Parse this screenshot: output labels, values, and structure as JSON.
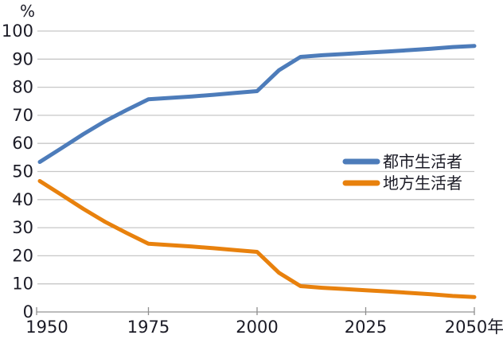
{
  "chart_data": {
    "type": "line",
    "title": "",
    "xlabel": "",
    "ylabel": "%",
    "ylim": [
      0,
      100
    ],
    "yticks": [
      0,
      10,
      20,
      30,
      40,
      50,
      60,
      70,
      80,
      90,
      100
    ],
    "x_range": [
      1950,
      2050
    ],
    "xticks": [
      {
        "year": 1950,
        "label": "1950"
      },
      {
        "year": 1975,
        "label": "1975"
      },
      {
        "year": 2000,
        "label": "2000"
      },
      {
        "year": 2025,
        "label": "2025"
      },
      {
        "year": 2050,
        "label": "2050年"
      }
    ],
    "grid": "horizontal",
    "legend_position": "middle-right",
    "x": [
      1950,
      1955,
      1960,
      1965,
      1970,
      1975,
      1980,
      1985,
      1990,
      1995,
      2000,
      2005,
      2010,
      2015,
      2020,
      2025,
      2030,
      2035,
      2040,
      2045,
      2050
    ],
    "series": [
      {
        "name": "都市生活者",
        "color": "#4d7cba",
        "values": [
          53.4,
          58.3,
          63.3,
          67.9,
          71.9,
          75.7,
          76.2,
          76.7,
          77.3,
          78.0,
          78.6,
          86.0,
          90.8,
          91.4,
          91.8,
          92.3,
          92.7,
          93.2,
          93.7,
          94.3,
          94.7
        ]
      },
      {
        "name": "地方生活者",
        "color": "#e8810d",
        "values": [
          46.6,
          41.7,
          36.7,
          32.1,
          28.1,
          24.3,
          23.8,
          23.3,
          22.7,
          22.0,
          21.4,
          14.0,
          9.2,
          8.6,
          8.2,
          7.7,
          7.3,
          6.8,
          6.3,
          5.7,
          5.3
        ]
      }
    ]
  },
  "colors": {
    "grid_line": "#c7c7c7",
    "axis_line": "#a6a6a6",
    "tick_mark": "#8f8f8f",
    "label_text": "#1b1b26"
  }
}
